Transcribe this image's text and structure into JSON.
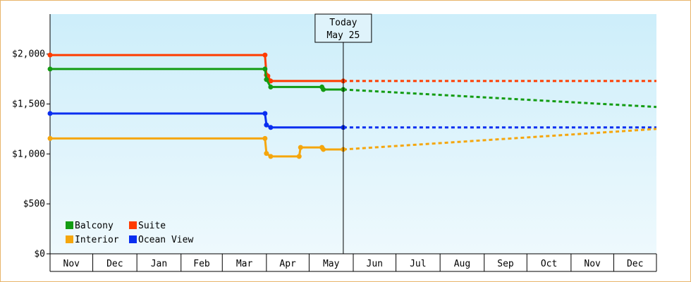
{
  "chart_data": {
    "type": "line",
    "line_style": "step",
    "title": "",
    "xlabel": "",
    "ylabel": "",
    "ylim": [
      0,
      2400
    ],
    "yticks": [
      0,
      500,
      1000,
      1500,
      2000
    ],
    "ytick_labels": [
      "$0",
      "$500",
      "$1,000",
      "$1,500",
      "$2,000"
    ],
    "months": [
      "Nov",
      "Dec",
      "Jan",
      "Feb",
      "Mar",
      "Apr",
      "May",
      "Jun",
      "Jul",
      "Aug",
      "Sep",
      "Oct",
      "Nov",
      "Dec"
    ],
    "today": {
      "line1": "Today",
      "line2": "May 25",
      "date": "2024-05-25"
    },
    "legend": {
      "position": "bottom-left"
    },
    "background_gradient": [
      "#cdeefa",
      "#eef9fd"
    ],
    "series": [
      {
        "name": "Suite",
        "color": "#ff3c00",
        "points": [
          [
            "2023-11-01",
            1990
          ],
          [
            "2024-03-31",
            1990
          ],
          [
            "2024-04-01",
            1790
          ],
          [
            "2024-04-02",
            1780
          ],
          [
            "2024-04-04",
            1730
          ],
          [
            "2024-05-25",
            1730
          ]
        ],
        "projection": [
          [
            "2024-05-25",
            1730
          ],
          [
            "2024-12-31",
            1730
          ]
        ]
      },
      {
        "name": "Balcony",
        "color": "#139c13",
        "points": [
          [
            "2023-11-01",
            1850
          ],
          [
            "2024-03-31",
            1850
          ],
          [
            "2024-04-01",
            1745
          ],
          [
            "2024-04-04",
            1670
          ],
          [
            "2024-05-10",
            1670
          ],
          [
            "2024-05-11",
            1645
          ],
          [
            "2024-05-25",
            1645
          ]
        ],
        "projection": [
          [
            "2024-05-25",
            1645
          ],
          [
            "2024-12-31",
            1470
          ]
        ]
      },
      {
        "name": "Ocean View",
        "color": "#0a2ef0",
        "points": [
          [
            "2023-11-01",
            1405
          ],
          [
            "2024-03-31",
            1405
          ],
          [
            "2024-04-01",
            1290
          ],
          [
            "2024-04-04",
            1265
          ],
          [
            "2024-05-25",
            1265
          ]
        ],
        "projection": [
          [
            "2024-05-25",
            1265
          ],
          [
            "2024-12-31",
            1265
          ]
        ]
      },
      {
        "name": "Interior",
        "color": "#f5a60d",
        "points": [
          [
            "2023-11-01",
            1155
          ],
          [
            "2024-03-31",
            1155
          ],
          [
            "2024-04-01",
            1005
          ],
          [
            "2024-04-04",
            975
          ],
          [
            "2024-04-24",
            975
          ],
          [
            "2024-04-25",
            1065
          ],
          [
            "2024-05-10",
            1065
          ],
          [
            "2024-05-11",
            1045
          ],
          [
            "2024-05-25",
            1045
          ]
        ],
        "projection": [
          [
            "2024-05-25",
            1045
          ],
          [
            "2024-12-31",
            1250
          ]
        ]
      }
    ]
  }
}
